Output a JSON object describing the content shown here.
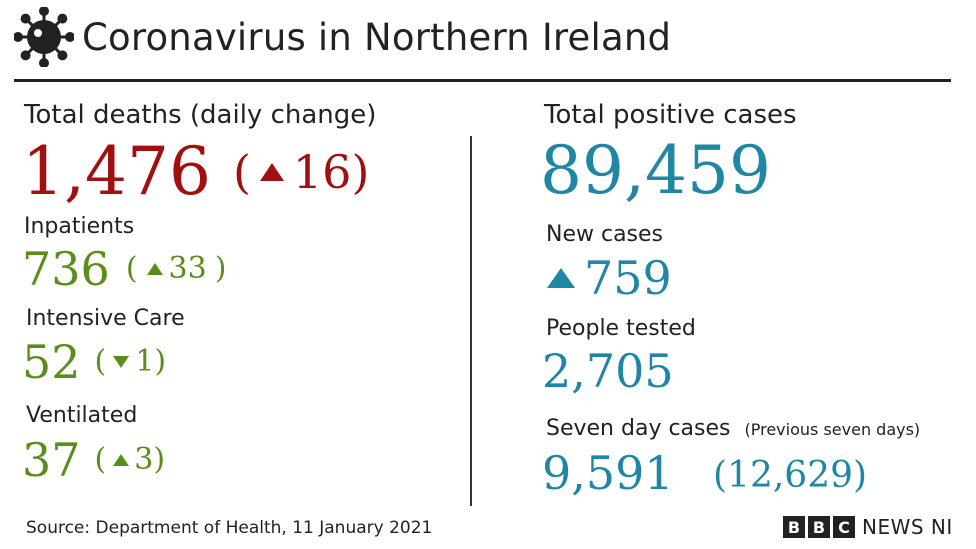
{
  "header": {
    "title": "Coronavirus in Northern Ireland",
    "icon": "coronavirus-icon"
  },
  "deaths": {
    "label": "Total deaths (daily change)",
    "value": "1,476",
    "change_open": "(",
    "change_value": "16",
    "change_close": ")",
    "direction": "up",
    "color": "#a01010"
  },
  "inpatients": {
    "label": "Inpatients",
    "value": "736",
    "change_open": "(",
    "change_value": "33",
    "change_close": ")",
    "direction": "up",
    "color": "#5a8d1a"
  },
  "intensive_care": {
    "label": "Intensive Care",
    "value": "52",
    "change_open": "(",
    "change_value": "1",
    "change_close": ")",
    "direction": "down"
  },
  "ventilated": {
    "label": "Ventilated",
    "value": "37",
    "change_open": "(",
    "change_value": "3",
    "change_close": ")",
    "direction": "up"
  },
  "cases": {
    "label": "Total positive cases",
    "value": "89,459",
    "color": "#1f86a3"
  },
  "new_cases": {
    "label": "New cases",
    "value": "759",
    "direction": "up"
  },
  "people_tested": {
    "label": "People tested",
    "value": "2,705"
  },
  "seven_day": {
    "label": "Seven day cases",
    "sublabel": "(Previous seven days)",
    "value": "9,591",
    "previous": "(12,629)"
  },
  "footer": {
    "source": "Source: Department of Health, 11 January 2021",
    "brand_letters": [
      "B",
      "B",
      "C"
    ],
    "brand_suffix": "NEWS NI"
  }
}
